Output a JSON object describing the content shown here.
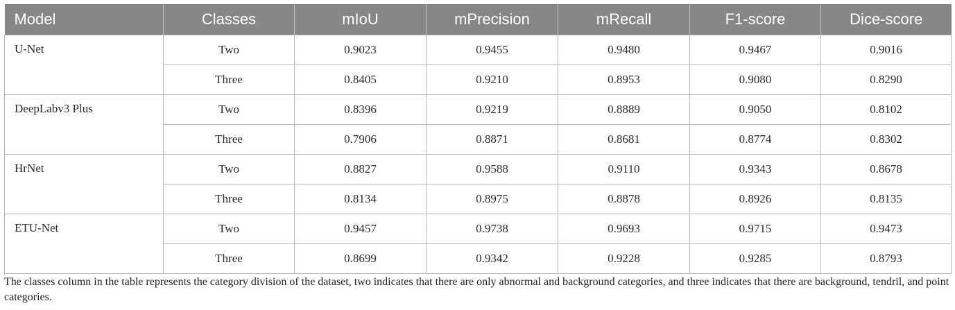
{
  "table": {
    "headers": [
      "Model",
      "Classes",
      "mIoU",
      "mPrecision",
      "mRecall",
      "F1-score",
      "Dice-score"
    ],
    "groups": [
      {
        "model": "U-Net",
        "rows": [
          [
            "Two",
            "0.9023",
            "0.9455",
            "0.9480",
            "0.9467",
            "0.9016"
          ],
          [
            "Three",
            "0.8405",
            "0.9210",
            "0.8953",
            "0.9080",
            "0.8290"
          ]
        ]
      },
      {
        "model": "DeepLabv3 Plus",
        "rows": [
          [
            "Two",
            "0.8396",
            "0.9219",
            "0.8889",
            "0.9050",
            "0.8102"
          ],
          [
            "Three",
            "0.7906",
            "0.8871",
            "0.8681",
            "0.8774",
            "0.8302"
          ]
        ]
      },
      {
        "model": "HrNet",
        "rows": [
          [
            "Two",
            "0.8827",
            "0.9588",
            "0.9110",
            "0.9343",
            "0.8678"
          ],
          [
            "Three",
            "0.8134",
            "0.8975",
            "0.8878",
            "0.8926",
            "0.8135"
          ]
        ]
      },
      {
        "model": "ETU-Net",
        "rows": [
          [
            "Two",
            "0.9457",
            "0.9738",
            "0.9693",
            "0.9715",
            "0.9473"
          ],
          [
            "Three",
            "0.8699",
            "0.9342",
            "0.9228",
            "0.9285",
            "0.8793"
          ]
        ]
      }
    ]
  },
  "caption": "The classes column in the table represents the category division of the dataset, two indicates that there are only abnormal and background categories, and three indicates that there are background, tendril, and point categories.",
  "colors": {
    "header_bg": "#858789",
    "header_text": "#ffffff",
    "border": "#b8b8b8"
  }
}
